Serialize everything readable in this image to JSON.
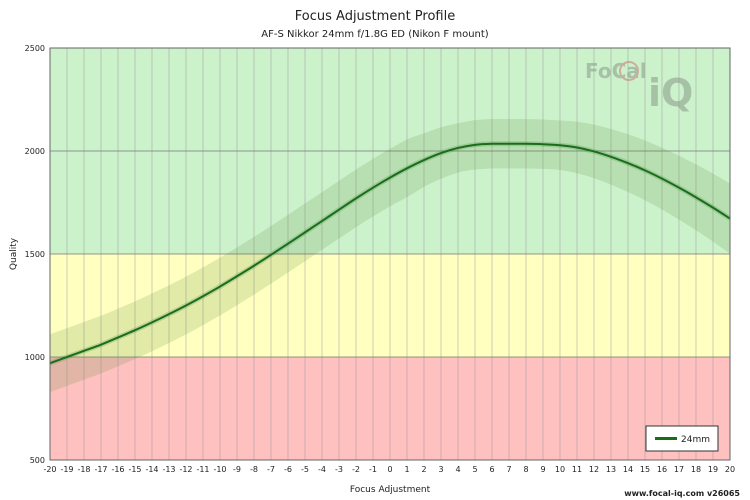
{
  "chart_data": {
    "type": "line",
    "title": "Focus Adjustment Profile",
    "subtitle": "AF-S Nikkor 24mm f/1.8G ED (Nikon F mount)",
    "xlabel": "Focus Adjustment",
    "ylabel": "Quality",
    "xlim": [
      -20,
      20
    ],
    "ylim": [
      500,
      2500
    ],
    "x_ticks": [
      -20,
      -19,
      -18,
      -17,
      -16,
      -15,
      -14,
      -13,
      -12,
      -11,
      -10,
      -9,
      -8,
      -7,
      -6,
      -5,
      -4,
      -3,
      -2,
      -1,
      0,
      1,
      2,
      3,
      4,
      5,
      6,
      7,
      8,
      9,
      10,
      11,
      12,
      13,
      14,
      15,
      16,
      17,
      18,
      19,
      20
    ],
    "y_ticks": [
      500,
      1000,
      1500,
      2000,
      2500
    ],
    "grid": true,
    "zones": [
      {
        "from": 500,
        "to": 1000,
        "color": "#ffc0c0"
      },
      {
        "from": 1000,
        "to": 1500,
        "color": "#ffffc0"
      },
      {
        "from": 1500,
        "to": 2500,
        "color": "#ccf2cc"
      }
    ],
    "series": [
      {
        "name": "24mm",
        "color": "#1a6e1a",
        "x": [
          -20,
          -19,
          -18,
          -17,
          -16,
          -15,
          -14,
          -13,
          -12,
          -11,
          -10,
          -9,
          -8,
          -7,
          -6,
          -5,
          -4,
          -3,
          -2,
          -1,
          0,
          1,
          2,
          3,
          4,
          5,
          6,
          7,
          8,
          9,
          10,
          11,
          12,
          13,
          14,
          15,
          16,
          17,
          18,
          19,
          20
        ],
        "values": [
          970,
          1000,
          1030,
          1060,
          1095,
          1130,
          1168,
          1208,
          1250,
          1295,
          1342,
          1392,
          1443,
          1496,
          1550,
          1605,
          1660,
          1715,
          1770,
          1822,
          1871,
          1916,
          1956,
          1990,
          2015,
          2030,
          2035,
          2035,
          2035,
          2033,
          2028,
          2017,
          1998,
          1972,
          1941,
          1906,
          1866,
          1822,
          1775,
          1725,
          1672
        ],
        "band_halfwidth": [
          140,
          140,
          140,
          140,
          140,
          140,
          140,
          140,
          140,
          140,
          140,
          140,
          140,
          140,
          140,
          140,
          140,
          140,
          140,
          140,
          140,
          140,
          130,
          125,
          120,
          120,
          120,
          120,
          120,
          120,
          120,
          125,
          130,
          135,
          140,
          145,
          150,
          155,
          160,
          165,
          170
        ]
      }
    ],
    "legend_position": "bottom-right",
    "watermark": "FoCal iQ",
    "footer": "www.focal-iq.com  v26065"
  }
}
